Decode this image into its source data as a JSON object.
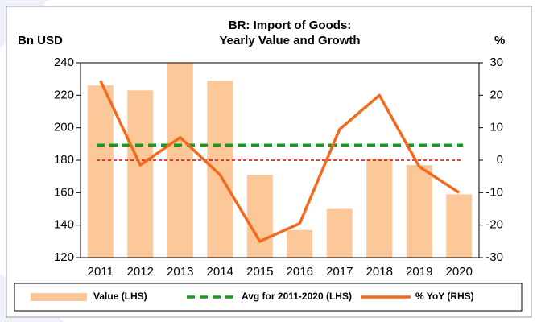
{
  "chart_data": {
    "type": "bar-line",
    "title": "BR: Import of Goods:",
    "subtitle": "Yearly Value and Growth",
    "y_label": "Bn USD",
    "y2_label": "%",
    "categories": [
      "2011",
      "2012",
      "2013",
      "2014",
      "2015",
      "2016",
      "2017",
      "2018",
      "2019",
      "2020"
    ],
    "series": [
      {
        "name": "Value (LHS)",
        "type": "bar",
        "color": "#fcc89a",
        "values": [
          226,
          223,
          240,
          229,
          171,
          137,
          150,
          181,
          177,
          159
        ]
      },
      {
        "name": "Avg for 2011-2020 (LHS)",
        "type": "hline",
        "color": "#1a9a1a",
        "value": 189.3
      },
      {
        "name": "% YoY (RHS)",
        "type": "line",
        "axis": "y2",
        "color": "#f26b1d",
        "values": [
          24.5,
          -1.5,
          7,
          -4.5,
          -25,
          -19.5,
          9.5,
          20,
          -2,
          -10
        ]
      }
    ],
    "y2_reference": 0,
    "reference_color": "#e00000",
    "ylim": [
      120,
      240
    ],
    "yticks": [
      120,
      140,
      160,
      180,
      200,
      220,
      240
    ],
    "y2lim": [
      -30,
      30
    ],
    "y2ticks": [
      -30,
      -20,
      -10,
      0,
      10,
      20,
      30
    ]
  }
}
